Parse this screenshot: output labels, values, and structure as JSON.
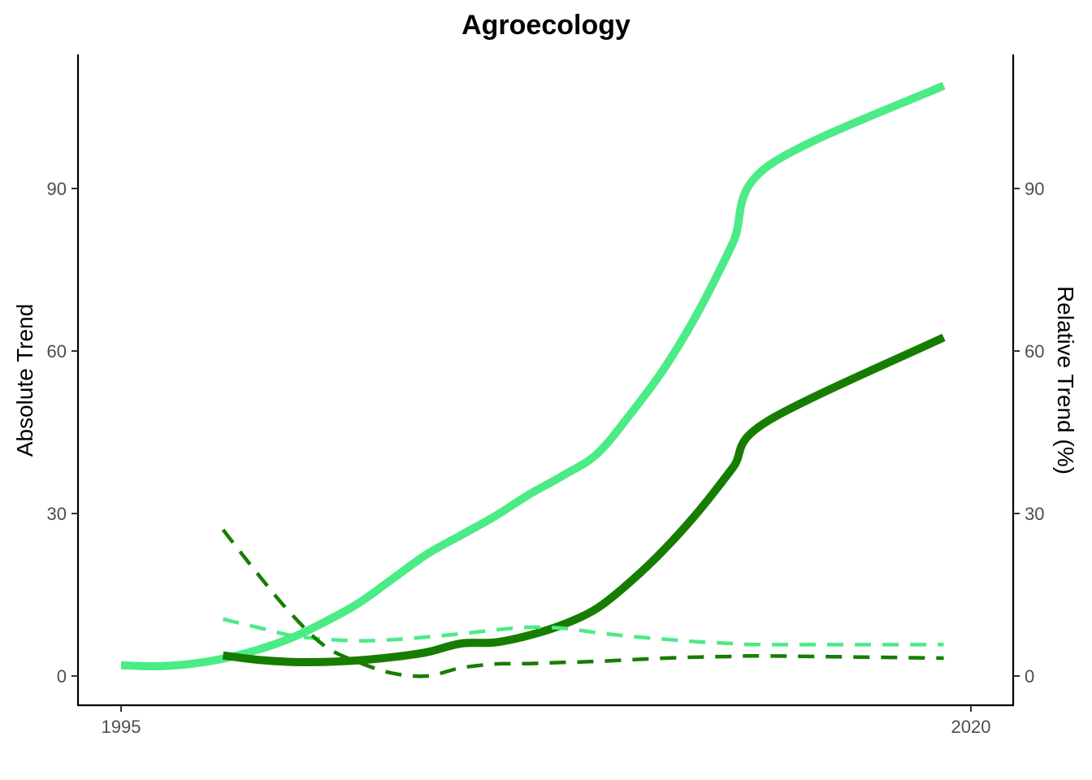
{
  "chart_data": {
    "type": "line",
    "title": "Agroecology",
    "ylabel": "Absolute Trend",
    "y2label": "Relative Trend (%)",
    "xlabel": "",
    "xlim": [
      1995,
      2020
    ],
    "ylim": [
      -5.5,
      115
    ],
    "y2lim": [
      -5.5,
      115
    ],
    "x_ticks": [
      1995,
      2020
    ],
    "y_ticks": [
      0,
      30,
      60,
      90
    ],
    "y2_ticks": [
      0,
      30,
      60,
      90
    ],
    "grid": false,
    "legend": "none",
    "series": [
      {
        "axis": "left",
        "style": "solid",
        "color": "#4BEB86",
        "points": [
          [
            1995,
            2.0
          ],
          [
            1996,
            1.8
          ],
          [
            1997,
            2.2
          ],
          [
            1998,
            3.2
          ],
          [
            1999,
            4.8
          ],
          [
            2000,
            7.0
          ],
          [
            2001,
            10.0
          ],
          [
            2002,
            13.5
          ],
          [
            2003,
            18.0
          ],
          [
            2004,
            22.5
          ],
          [
            2005,
            26.0
          ],
          [
            2006,
            29.5
          ],
          [
            2007,
            33.5
          ],
          [
            2008,
            37.0
          ],
          [
            2009,
            41.0
          ],
          [
            2010,
            48.5
          ],
          [
            2011,
            57.0
          ],
          [
            2012,
            67.5
          ],
          [
            2013,
            80.0
          ],
          [
            2014,
            94.0
          ],
          [
            2019.2,
            109.0
          ]
        ]
      },
      {
        "axis": "left",
        "style": "solid",
        "color": "#177D00",
        "points": [
          [
            1998,
            3.8
          ],
          [
            1999,
            3.0
          ],
          [
            2000,
            2.6
          ],
          [
            2001,
            2.6
          ],
          [
            2002,
            2.9
          ],
          [
            2003,
            3.5
          ],
          [
            2004,
            4.4
          ],
          [
            2005,
            6.0
          ],
          [
            2006,
            6.2
          ],
          [
            2007,
            7.5
          ],
          [
            2008,
            9.5
          ],
          [
            2009,
            12.5
          ],
          [
            2010,
            17.5
          ],
          [
            2011,
            23.5
          ],
          [
            2012,
            30.5
          ],
          [
            2013,
            38.5
          ],
          [
            2014,
            47.0
          ],
          [
            2019.2,
            62.5
          ]
        ]
      },
      {
        "axis": "right",
        "style": "dashed",
        "color": "#4BEB86",
        "points": [
          [
            1998,
            10.5
          ],
          [
            1999,
            9.0
          ],
          [
            2000,
            7.5
          ],
          [
            2001,
            6.8
          ],
          [
            2002,
            6.5
          ],
          [
            2003,
            6.7
          ],
          [
            2004,
            7.2
          ],
          [
            2005,
            7.8
          ],
          [
            2006,
            8.5
          ],
          [
            2007,
            9.0
          ],
          [
            2008,
            8.8
          ],
          [
            2009,
            8.0
          ],
          [
            2010,
            7.3
          ],
          [
            2011,
            6.8
          ],
          [
            2012,
            6.3
          ],
          [
            2013,
            6.0
          ],
          [
            2014,
            5.8
          ],
          [
            2019.2,
            5.8
          ]
        ]
      },
      {
        "axis": "right",
        "style": "dashed",
        "color": "#177D00",
        "points": [
          [
            1998,
            27.0
          ],
          [
            1999,
            19.0
          ],
          [
            2000,
            11.5
          ],
          [
            2001,
            5.5
          ],
          [
            2002,
            2.5
          ],
          [
            2003,
            0.5
          ],
          [
            2004,
            0.0
          ],
          [
            2005,
            1.5
          ],
          [
            2006,
            2.2
          ],
          [
            2007,
            2.3
          ],
          [
            2008,
            2.5
          ],
          [
            2009,
            2.7
          ],
          [
            2010,
            3.0
          ],
          [
            2011,
            3.3
          ],
          [
            2012,
            3.5
          ],
          [
            2013,
            3.6
          ],
          [
            2014,
            3.7
          ],
          [
            2019.2,
            3.3
          ]
        ]
      }
    ]
  }
}
